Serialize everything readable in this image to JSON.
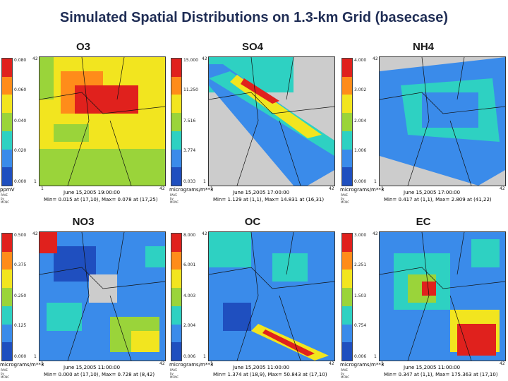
{
  "title": "Simulated Spatial Distributions on 1.3-km Grid (basecase)",
  "colors": [
    "#e0211d",
    "#ff8c1a",
    "#f2e51f",
    "#9ad43a",
    "#2ed1c2",
    "#3a8bea",
    "#1f4fbf",
    "#cccccc"
  ],
  "panels": [
    {
      "name": "O3",
      "ticks": [
        "0.080",
        "0.060",
        "0.040",
        "0.020",
        "0.000"
      ],
      "unit": "ppmV",
      "date": "June 15,2005 19:00:00",
      "minmax": "Min=  0.015 at (17,10), Max=  0.078 at (17,25)",
      "axis": {
        "top": "42",
        "bottom": "1",
        "left": "1",
        "right": "42"
      },
      "corner": [
        "PAVE",
        "by",
        "MCNC"
      ]
    },
    {
      "name": "SO4",
      "ticks": [
        "15.000",
        "11.250",
        "7.516",
        "3.774",
        "0.033"
      ],
      "unit": "micrograms/m**3",
      "date": "June 15,2005 17:00:00",
      "minmax": "Min=  1.129 at (1,1), Max=  14.831 at (16,31)",
      "axis": {
        "top": "42",
        "bottom": "1",
        "left": "1",
        "right": "42"
      },
      "corner": [
        "PAVE",
        "by",
        "MCNC"
      ]
    },
    {
      "name": "NH4",
      "ticks": [
        "4.000",
        "3.002",
        "2.004",
        "1.006",
        "0.000"
      ],
      "unit": "micrograms/m**3",
      "date": "June 15,2005 17:00:00",
      "minmax": "Min=  0.417 at (1,1), Max=  2.809 at (41,22)",
      "axis": {
        "top": "42",
        "bottom": "1",
        "left": "1",
        "right": "42"
      },
      "corner": [
        "PAVE",
        "by",
        "MCNC"
      ]
    },
    {
      "name": "NO3",
      "ticks": [
        "0.500",
        "0.375",
        "0.250",
        "0.125",
        "0.000"
      ],
      "unit": "micrograms/m**3",
      "date": "June 15,2005 11:00:00",
      "minmax": "Min=  0.000 at (17,10), Max=  0.728 at (8,42)",
      "axis": {
        "top": "42",
        "bottom": "1",
        "left": "1",
        "right": "42"
      },
      "corner": [
        "PAVE",
        "by",
        "MCNC"
      ]
    },
    {
      "name": "OC",
      "ticks": [
        "8.000",
        "6.001",
        "4.003",
        "2.004",
        "0.006"
      ],
      "unit": "micrograms/m**3",
      "date": "June 15,2005 11:00:00",
      "minmax": "Min=  1.374 at (18,9), Max=  50.843 at (17,10)",
      "axis": {
        "top": "42",
        "bottom": "1",
        "left": "1",
        "right": "42"
      },
      "corner": [
        "PAVE",
        "by",
        "MCNC"
      ]
    },
    {
      "name": "EC",
      "ticks": [
        "3.000",
        "2.251",
        "1.503",
        "0.754",
        "0.006"
      ],
      "unit": "micrograms/m**3",
      "date": "June 15,2005 11:00:00",
      "minmax": "Min=  0.347 at (1,1), Max=  175.363 at (17,10)",
      "axis": {
        "top": "42",
        "bottom": "1",
        "left": "1",
        "right": "42"
      },
      "corner": [
        "PAVE",
        "by",
        "MCNC"
      ]
    }
  ]
}
